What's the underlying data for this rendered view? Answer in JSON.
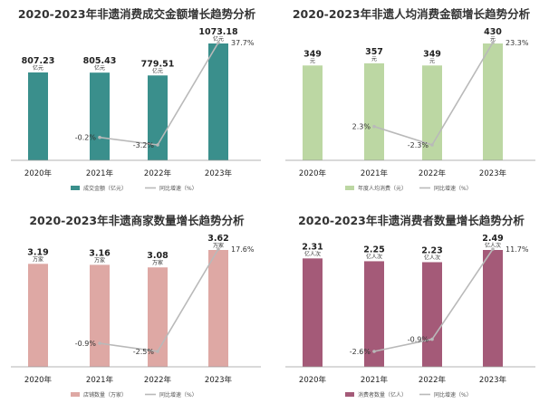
{
  "chart_data": [
    {
      "type": "bar",
      "title": "2020-2023年非遗消费成交金额增长趋势分析",
      "categories": [
        "2020年",
        "2021年",
        "2022年",
        "2023年"
      ],
      "bar_series": {
        "name": "成交金额（亿元）",
        "values": [
          807.23,
          805.43,
          779.51,
          1073.18
        ],
        "labels": [
          "807.23",
          "805.43",
          "779.51",
          "1073.18"
        ],
        "unit_label": "亿元"
      },
      "line_series": {
        "name": "同比增速（%）",
        "values": [
          -0.2,
          -3.2,
          37.7
        ],
        "labels": [
          "-0.2%",
          "-3.2%",
          "37.7%"
        ],
        "x_start": 1
      },
      "bar_color": "#3a8f8c",
      "line_color": "#b9b9b9"
    },
    {
      "type": "bar",
      "title": "2020-2023年非遗人均消费金额增长趋势分析",
      "categories": [
        "2020年",
        "2021年",
        "2022年",
        "2023年"
      ],
      "bar_series": {
        "name": "年度人均消费（元）",
        "values": [
          349,
          357,
          349,
          430
        ],
        "labels": [
          "349",
          "357",
          "349",
          "430"
        ],
        "unit_label": "元"
      },
      "line_series": {
        "name": "同比增速（%）",
        "values": [
          2.3,
          -2.3,
          23.3
        ],
        "labels": [
          "2.3%",
          "-2.3%",
          "23.3%"
        ],
        "x_start": 1
      },
      "bar_color": "#bcd7a3",
      "line_color": "#b9b9b9"
    },
    {
      "type": "bar",
      "title": "2020-2023年非遗商家数量增长趋势分析",
      "categories": [
        "2020年",
        "2021年",
        "2022年",
        "2023年"
      ],
      "bar_series": {
        "name": "店铺数量（万家）",
        "values": [
          3.19,
          3.16,
          3.08,
          3.62
        ],
        "labels": [
          "3.19",
          "3.16",
          "3.08",
          "3.62"
        ],
        "unit_label": "万家"
      },
      "line_series": {
        "name": "同比增速（%）",
        "values": [
          -0.9,
          -2.5,
          17.6
        ],
        "labels": [
          "-0.9%",
          "-2.5%",
          "17.6%"
        ],
        "x_start": 1
      },
      "bar_color": "#dea8a4",
      "line_color": "#b9b9b9"
    },
    {
      "type": "bar",
      "title": "2020-2023年非遗消费者数量增长趋势分析",
      "categories": [
        "2020年",
        "2021年",
        "2022年",
        "2023年"
      ],
      "bar_series": {
        "name": "消费者数量（亿人）",
        "values": [
          2.31,
          2.25,
          2.23,
          2.49
        ],
        "labels": [
          "2.31",
          "2.25",
          "2.23",
          "2.49"
        ],
        "unit_label": "亿人次"
      },
      "line_series": {
        "name": "同比增速（%）",
        "values": [
          -2.6,
          -0.9,
          11.7
        ],
        "labels": [
          "-2.6%",
          "-0.9%",
          "11.7%"
        ],
        "x_start": 1
      },
      "bar_color": "#a45a78",
      "line_color": "#b9b9b9"
    }
  ]
}
